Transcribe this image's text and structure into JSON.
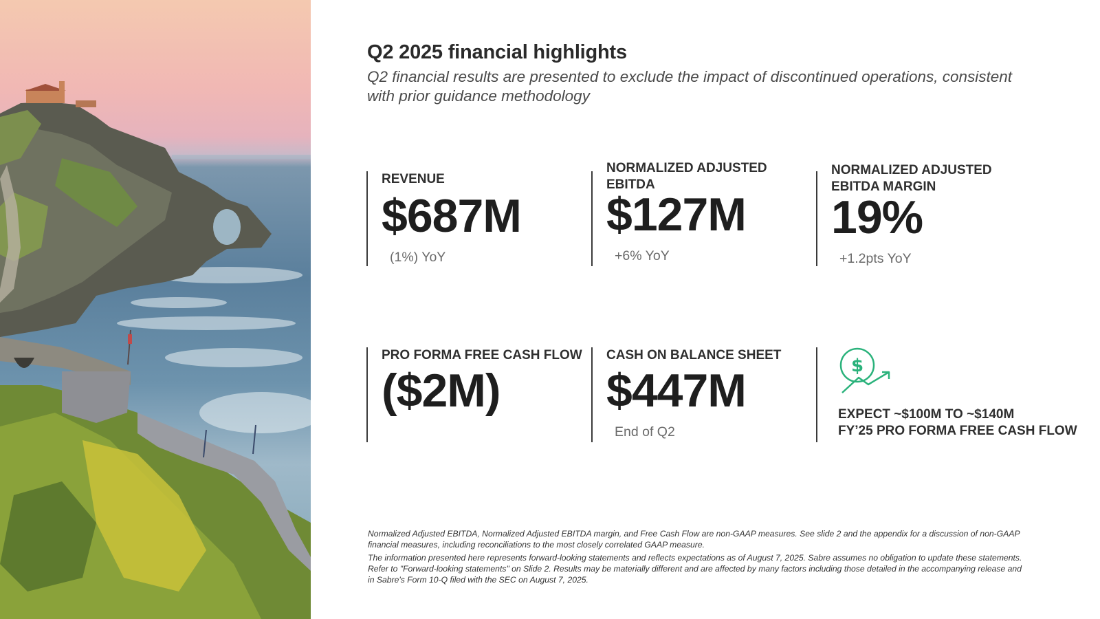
{
  "slide": {
    "title": "Q2 2025 financial highlights",
    "subtitle": "Q2 financial results are presented to exclude the impact of discontinued operations, consistent with prior guidance methodology"
  },
  "metrics": {
    "revenue": {
      "label": "REVENUE",
      "value": "$687M",
      "note": "(1%) YoY"
    },
    "ebitda": {
      "label": "NORMALIZED ADJUSTED EBITDA",
      "value": "$127M",
      "note": "+6% YoY"
    },
    "margin": {
      "label": "NORMALIZED ADJUSTED EBITDA MARGIN",
      "value": "19%",
      "note": "+1.2pts YoY"
    },
    "fcf": {
      "label": "PRO FORMA FREE CASH FLOW",
      "value": "($2M)"
    },
    "cash": {
      "label": "CASH ON BALANCE SHEET",
      "value": "$447M",
      "note": "End of Q2"
    },
    "guidance": {
      "line1": "EXPECT ~$100M TO ~$140M",
      "line2": "FY’25 PRO FORMA FREE CASH FLOW",
      "icon": "dollar-growth-icon",
      "icon_color": "#2ab27b"
    }
  },
  "footnotes": {
    "note1": "Normalized Adjusted EBITDA, Normalized Adjusted EBITDA margin, and Free Cash Flow are non-GAAP measures. See slide 2 and the appendix for a discussion of non-GAAP financial measures, including reconciliations to the most closely correlated GAAP measure.",
    "note2": "The information presented here represents forward-looking statements and reflects expectations as of August 7, 2025. Sabre assumes no obligation to update these statements. Refer to \"Forward-looking statements\" on Slide 2.  Results may be materially different and are affected by many factors including those detailed in the accompanying release and in Sabre's Form 10-Q filed with the SEC on August 7, 2025."
  },
  "colors": {
    "accent": "#2ab27b",
    "text": "#222222",
    "muted": "#6a6a6a"
  }
}
